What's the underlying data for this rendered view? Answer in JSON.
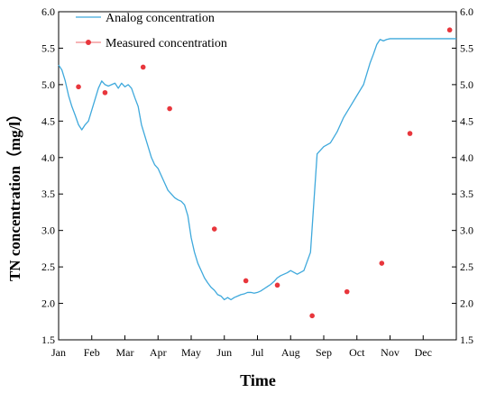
{
  "chart_data": {
    "type": "line",
    "xlabel": "Time",
    "ylabel": "TN concentration（mg/l）",
    "categories": [
      "Jan",
      "Feb",
      "Mar",
      "Apr",
      "May",
      "Jun",
      "Jul",
      "Aug",
      "Sep",
      "Oct",
      "Nov",
      "Dec"
    ],
    "ylim": [
      1.5,
      6.0
    ],
    "yticks": [
      "1.5",
      "2.0",
      "2.5",
      "3.0",
      "3.5",
      "4.0",
      "4.5",
      "5.0",
      "5.5",
      "6.0"
    ],
    "grid": false,
    "legend_position": "top-left",
    "colors": {
      "analog": "#3fa9dc",
      "measured": "#e8363c"
    },
    "series": [
      {
        "name": "Analog concentration",
        "style": "line",
        "x": [
          1.0,
          1.1,
          1.2,
          1.3,
          1.4,
          1.5,
          1.6,
          1.7,
          1.8,
          1.9,
          2.0,
          2.1,
          2.2,
          2.3,
          2.4,
          2.5,
          2.6,
          2.7,
          2.8,
          2.9,
          3.0,
          3.1,
          3.2,
          3.3,
          3.4,
          3.5,
          3.6,
          3.7,
          3.8,
          3.9,
          4.0,
          4.1,
          4.2,
          4.3,
          4.4,
          4.5,
          4.6,
          4.7,
          4.8,
          4.9,
          5.0,
          5.1,
          5.2,
          5.3,
          5.4,
          5.5,
          5.6,
          5.7,
          5.8,
          5.9,
          6.0,
          6.1,
          6.2,
          6.3,
          6.4,
          6.5,
          6.6,
          6.7,
          6.8,
          6.9,
          7.0,
          7.1,
          7.2,
          7.3,
          7.4,
          7.5,
          7.6,
          7.7,
          7.8,
          7.9,
          8.0,
          8.2,
          8.4,
          8.6,
          8.8,
          9.0,
          9.2,
          9.4,
          9.6,
          9.8,
          10.0,
          10.2,
          10.4,
          10.5,
          10.6,
          10.7,
          10.8,
          10.9,
          11.0,
          11.05,
          11.1,
          11.2,
          11.4,
          11.6,
          11.8,
          12.0,
          12.2,
          12.4,
          12.6,
          12.7,
          12.8,
          12.9,
          13.0
        ],
        "values": [
          5.27,
          5.2,
          5.05,
          4.85,
          4.7,
          4.58,
          4.45,
          4.38,
          4.45,
          4.5,
          4.65,
          4.8,
          4.95,
          5.05,
          5.0,
          4.98,
          5.0,
          5.02,
          4.95,
          5.02,
          4.97,
          5.0,
          4.95,
          4.82,
          4.7,
          4.45,
          4.3,
          4.15,
          4.0,
          3.9,
          3.85,
          3.75,
          3.65,
          3.55,
          3.5,
          3.45,
          3.42,
          3.4,
          3.35,
          3.2,
          2.9,
          2.7,
          2.55,
          2.45,
          2.35,
          2.28,
          2.22,
          2.18,
          2.12,
          2.1,
          2.05,
          2.08,
          2.05,
          2.08,
          2.1,
          2.12,
          2.13,
          2.15,
          2.15,
          2.14,
          2.15,
          2.17,
          2.2,
          2.23,
          2.26,
          2.3,
          2.35,
          2.38,
          2.4,
          2.42,
          2.45,
          2.4,
          2.45,
          2.7,
          4.05,
          4.15,
          4.2,
          4.35,
          4.55,
          4.7,
          4.85,
          5.0,
          5.3,
          5.42,
          5.55,
          5.62,
          5.6,
          5.62,
          5.63,
          5.63,
          5.63,
          5.63,
          5.63,
          5.63,
          5.63,
          5.63,
          5.63,
          5.63,
          5.63,
          5.63,
          5.63,
          5.63,
          5.63
        ]
      },
      {
        "name": "Measured concentration",
        "style": "markers",
        "x": [
          1.6,
          2.4,
          3.55,
          4.35,
          5.7,
          6.65,
          7.6,
          8.65,
          9.7,
          10.75,
          11.6,
          12.8
        ],
        "values": [
          4.97,
          4.89,
          5.24,
          4.67,
          3.02,
          2.31,
          2.25,
          1.83,
          2.16,
          2.55,
          4.33,
          5.75
        ]
      }
    ]
  }
}
